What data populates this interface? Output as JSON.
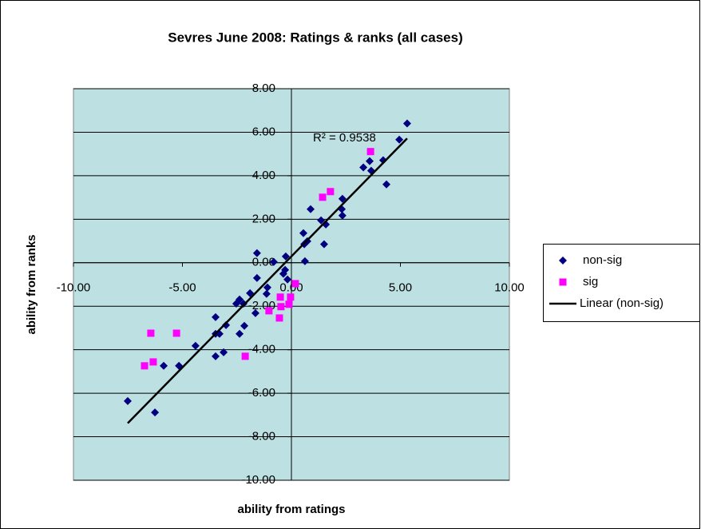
{
  "chart_data": {
    "type": "scatter",
    "title": "Sevres June 2008:  Ratings & ranks (all cases)",
    "x_label": "ability from ratings",
    "y_label": "ability from ranks",
    "xlim": [
      -10,
      10
    ],
    "ylim": [
      -10,
      8
    ],
    "xticks": [
      {
        "value": -10,
        "label": "-10.00"
      },
      {
        "value": -5,
        "label": "-5.00"
      },
      {
        "value": 0,
        "label": "0.00"
      },
      {
        "value": 5,
        "label": "5.00"
      },
      {
        "value": 10,
        "label": "10.00"
      }
    ],
    "yticks": [
      {
        "value": -10,
        "label": "-10.00"
      },
      {
        "value": -8,
        "label": "-8.00"
      },
      {
        "value": -6,
        "label": "-6.00"
      },
      {
        "value": -4,
        "label": "-4.00"
      },
      {
        "value": -2,
        "label": "-2.00"
      },
      {
        "value": 0,
        "label": "0.00"
      },
      {
        "value": 2,
        "label": "2.00"
      },
      {
        "value": 4,
        "label": "4.00"
      },
      {
        "value": 6,
        "label": "6.00"
      },
      {
        "value": 8,
        "label": "8.00"
      }
    ],
    "grid": true,
    "plot_background": "#bde0e2",
    "legend": "right",
    "series": [
      {
        "name": "non-sig",
        "color": "#000080",
        "marker": "diamond",
        "x": [
          5.31,
          4.95,
          4.21,
          3.59,
          3.3,
          3.66,
          4.36,
          2.34,
          2.31,
          2.34,
          0.88,
          1.36,
          1.58,
          1.5,
          0.55,
          0.73,
          0.59,
          0.62,
          -0.26,
          -0.81,
          -1.58,
          -0.29,
          -0.37,
          -0.18,
          -1.58,
          -1.1,
          -1.14,
          -1.9,
          -2.38,
          -2.53,
          -2.2,
          -1.65,
          -3.48,
          -3.0,
          -3.3,
          -2.38,
          -2.16,
          -3.48,
          -3.11,
          -3.48,
          -4.4,
          -5.16,
          -5.86,
          -7.51,
          -6.26
        ],
        "values": [
          6.4,
          5.66,
          4.71,
          4.67,
          4.38,
          4.23,
          3.6,
          2.94,
          2.46,
          2.17,
          2.46,
          1.95,
          1.76,
          0.85,
          1.36,
          0.99,
          0.85,
          0.07,
          0.29,
          0.04,
          0.44,
          -0.33,
          -0.51,
          -0.77,
          -0.7,
          -1.14,
          -1.43,
          -1.4,
          -1.69,
          -1.88,
          -1.88,
          -2.32,
          -2.5,
          -2.87,
          -3.27,
          -3.27,
          -2.9,
          -3.27,
          -4.12,
          -4.3,
          -3.82,
          -4.74,
          -4.74,
          -6.36,
          -6.88
        ],
        "trendline": {
          "label": "Linear (non-sig)",
          "annotation": "R² = 0.9538",
          "color": "#000000"
        }
      },
      {
        "name": "sig",
        "color": "#ff00ff",
        "marker": "square",
        "x": [
          3.63,
          1.79,
          1.43,
          0.18,
          -0.51,
          -0.04,
          -0.48,
          -0.11,
          -1.03,
          -0.55,
          -5.27,
          -6.45,
          -6.34,
          -6.74,
          -2.12
        ],
        "values": [
          5.11,
          3.27,
          3.01,
          -0.96,
          -1.58,
          -1.58,
          -2.02,
          -1.91,
          -2.21,
          -2.54,
          -3.24,
          -3.24,
          -4.56,
          -4.74,
          -4.3
        ]
      }
    ]
  }
}
